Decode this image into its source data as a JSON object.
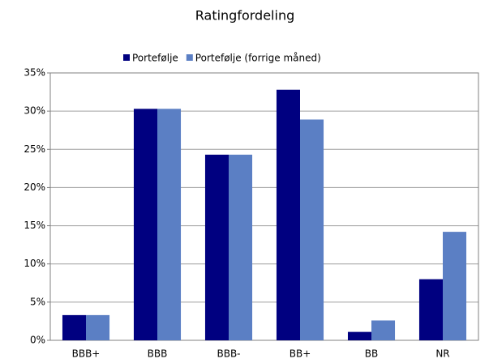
{
  "chart_data": {
    "type": "bar",
    "title": "Ratingfordeling",
    "categories": [
      "BBB+",
      "BBB",
      "BBB-",
      "BB+",
      "BB",
      "NR"
    ],
    "series": [
      {
        "name": "Portefølje",
        "color": "#000080",
        "values": [
          3.3,
          30.3,
          24.3,
          32.8,
          1.1,
          8.0
        ]
      },
      {
        "name": "Portefølje (forrige måned)",
        "color": "#5b7fc4",
        "values": [
          3.3,
          30.3,
          24.3,
          28.9,
          2.6,
          14.2
        ]
      }
    ],
    "ylim": [
      0,
      35
    ],
    "yticks": [
      {
        "value": 0,
        "label": "0%"
      },
      {
        "value": 5,
        "label": "5%"
      },
      {
        "value": 10,
        "label": "10%"
      },
      {
        "value": 15,
        "label": "15%"
      },
      {
        "value": 20,
        "label": "20%"
      },
      {
        "value": 25,
        "label": "25%"
      },
      {
        "value": 30,
        "label": "30%"
      },
      {
        "value": 35,
        "label": "35%"
      }
    ],
    "grid": true,
    "legend": "top"
  }
}
